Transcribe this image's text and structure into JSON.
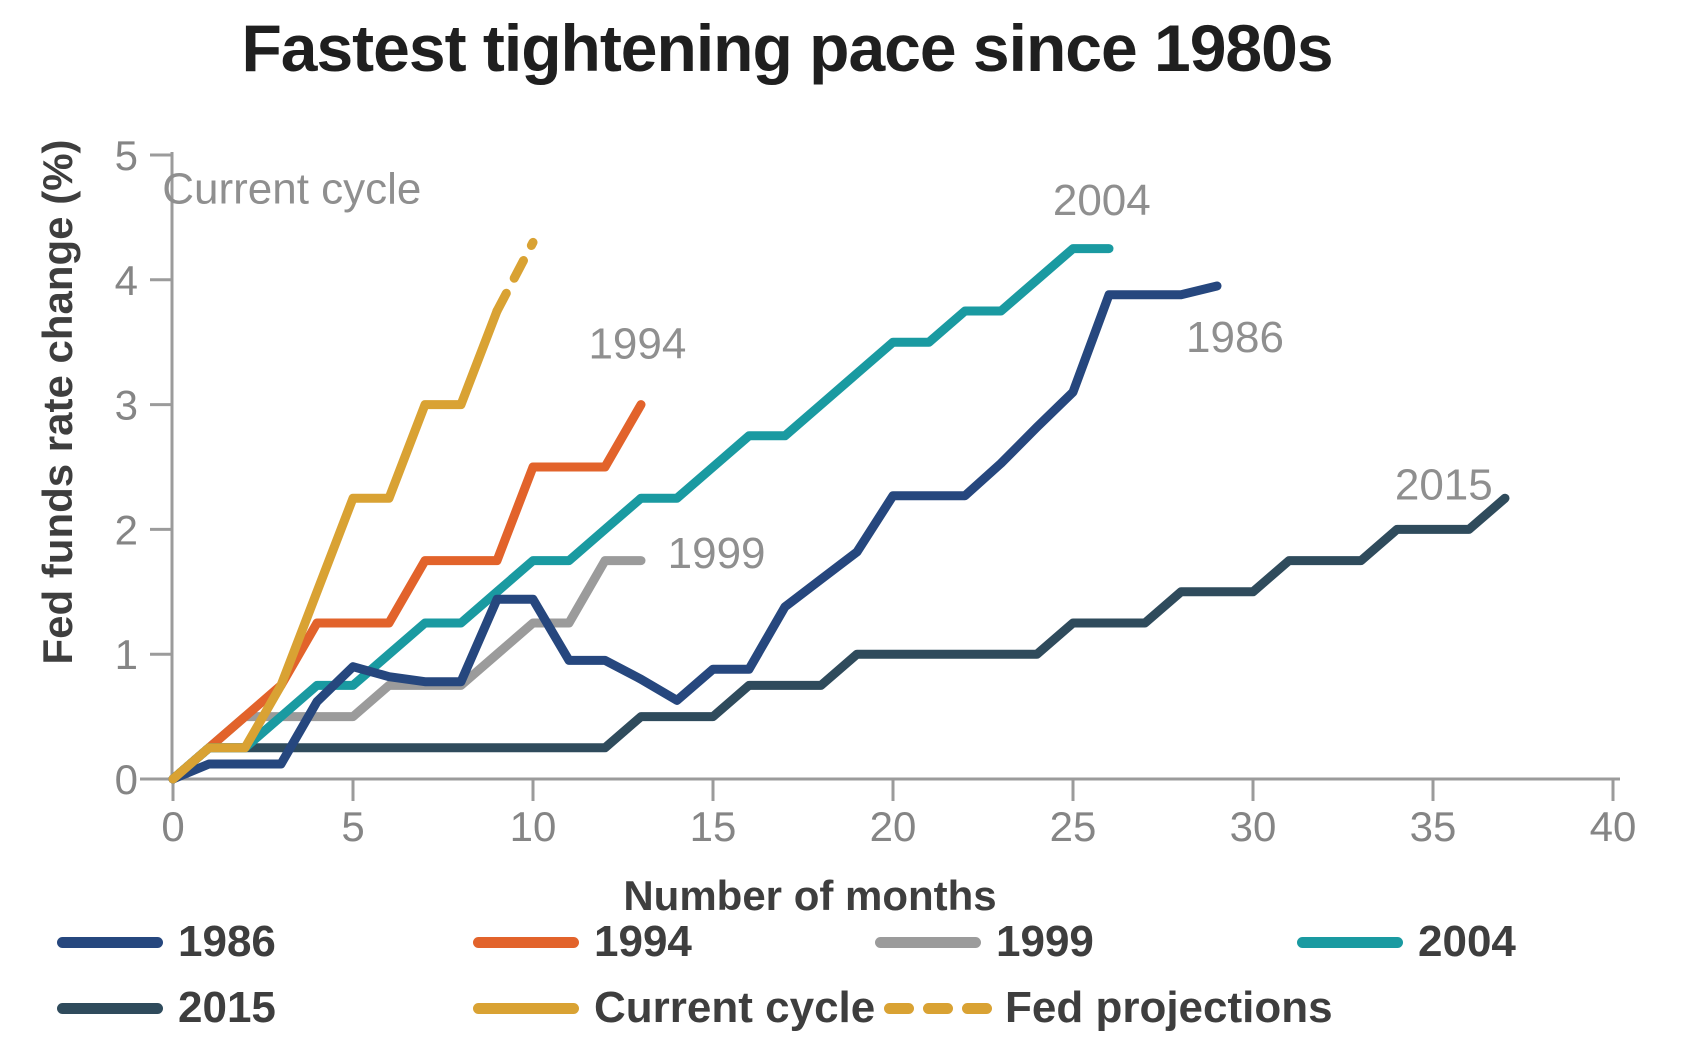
{
  "chart_data": {
    "type": "line",
    "title": "Fastest tightening pace since 1980s",
    "xlabel": "Number of months",
    "ylabel": "Fed funds rate change (%)",
    "xlim": [
      0,
      40
    ],
    "ylim": [
      0,
      5
    ],
    "x_ticks": [
      0,
      5,
      10,
      15,
      20,
      25,
      30,
      35,
      40
    ],
    "y_ticks": [
      0,
      1,
      2,
      3,
      4,
      5
    ],
    "grid": false,
    "legend_position": "bottom",
    "series": [
      {
        "name": "1999",
        "color": "#9b9b9b",
        "x_start": 0,
        "values": [
          0,
          0.25,
          0.5,
          0.5,
          0.5,
          0.5,
          0.75,
          0.75,
          0.75,
          1.0,
          1.25,
          1.25,
          1.75,
          1.75
        ]
      },
      {
        "name": "1994",
        "color": "#e2632b",
        "x_start": 0,
        "values": [
          0,
          0.25,
          0.5,
          0.75,
          1.25,
          1.25,
          1.25,
          1.75,
          1.75,
          1.75,
          2.5,
          2.5,
          2.5,
          3.0
        ]
      },
      {
        "name": "2015",
        "color": "#2f4b5c",
        "x_start": 0,
        "values": [
          0,
          0.25,
          0.25,
          0.25,
          0.25,
          0.25,
          0.25,
          0.25,
          0.25,
          0.25,
          0.25,
          0.25,
          0.25,
          0.5,
          0.5,
          0.5,
          0.75,
          0.75,
          0.75,
          1.0,
          1.0,
          1.0,
          1.0,
          1.0,
          1.0,
          1.25,
          1.25,
          1.25,
          1.5,
          1.5,
          1.5,
          1.75,
          1.75,
          1.75,
          2.0,
          2.0,
          2.0,
          2.25
        ]
      },
      {
        "name": "2004",
        "color": "#1a9aa1",
        "x_start": 0,
        "values": [
          0,
          0.25,
          0.25,
          0.5,
          0.75,
          0.75,
          1.0,
          1.25,
          1.25,
          1.5,
          1.75,
          1.75,
          2.0,
          2.25,
          2.25,
          2.5,
          2.75,
          2.75,
          3.0,
          3.25,
          3.5,
          3.5,
          3.75,
          3.75,
          4.0,
          4.25,
          4.25
        ]
      },
      {
        "name": "1986",
        "color": "#26477e",
        "x_start": 0,
        "values": [
          0,
          0.12,
          0.12,
          0.12,
          0.62,
          0.9,
          0.82,
          0.78,
          0.78,
          1.44,
          1.44,
          0.95,
          0.95,
          0.8,
          0.63,
          0.88,
          0.88,
          1.38,
          1.6,
          1.82,
          2.27,
          2.27,
          2.27,
          2.53,
          2.82,
          3.1,
          3.88,
          3.88,
          3.88,
          3.95
        ]
      },
      {
        "name": "Current cycle",
        "color": "#d9a233",
        "x_start": 0,
        "values": [
          0,
          0.25,
          0.25,
          0.75,
          1.5,
          2.25,
          2.25,
          3.0,
          3.0,
          3.75
        ]
      },
      {
        "name": "Fed projections",
        "color": "#d9a233",
        "dashed": true,
        "x": [
          9,
          10
        ],
        "values": [
          3.75,
          4.3
        ]
      }
    ],
    "annotations": [
      {
        "text": "Current cycle",
        "x": 3.3,
        "y": 4.73
      },
      {
        "text": "1994",
        "x": 12.9,
        "y": 3.49
      },
      {
        "text": "1999",
        "x": 15.1,
        "y": 1.81
      },
      {
        "text": "2004",
        "x": 25.8,
        "y": 4.64
      },
      {
        "text": "1986",
        "x": 29.5,
        "y": 3.54
      },
      {
        "text": "2015",
        "x": 35.3,
        "y": 2.36
      }
    ],
    "legend": {
      "rows": [
        [
          "1986",
          "1994",
          "1999",
          "2004"
        ],
        [
          "2015",
          "Current cycle",
          "Fed projections"
        ]
      ]
    }
  },
  "colors": {
    "background": "#ffffff",
    "title_text": "#1f1f1f",
    "axis_line": "#9b9b9b",
    "tick_text": "#858585",
    "annotation_text": "#8f8f8f",
    "axis_title_text": "#3e3e3e",
    "legend_text": "#3e3e3e"
  }
}
